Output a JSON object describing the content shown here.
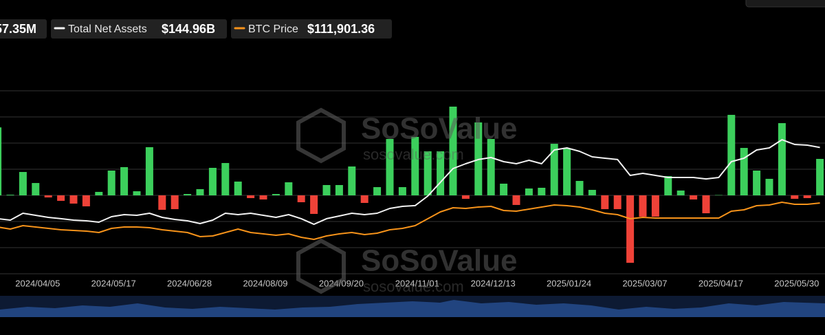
{
  "chart_data": {
    "type": "combo",
    "categories": [
      null,
      null,
      null,
      "2024/04/05",
      null,
      null,
      null,
      null,
      null,
      "2024/05/17",
      null,
      null,
      null,
      null,
      null,
      "2024/06/28",
      null,
      null,
      null,
      null,
      null,
      "2024/08/09",
      null,
      null,
      null,
      null,
      null,
      "2024/09/20",
      null,
      null,
      null,
      null,
      null,
      "2024/11/01",
      null,
      null,
      null,
      null,
      null,
      "2024/12/13",
      null,
      null,
      null,
      null,
      null,
      "2025/01/24",
      null,
      null,
      null,
      null,
      null,
      "2025/03/07",
      null,
      null,
      null,
      null,
      null,
      "2025/04/17",
      null,
      null,
      null,
      null,
      null,
      "2025/05/30",
      null,
      null
    ],
    "ylim": [
      -1200,
      2000
    ],
    "yticks": [
      -1200,
      -800,
      -400,
      0,
      400,
      800,
      1200,
      1600
    ],
    "grid": true,
    "y2lim": [
      0,
      240
    ],
    "y3lim": [
      -10000,
      350000
    ],
    "series": [
      {
        "type": "bar",
        "legend_value": "57.35M",
        "color_positive": "#3ccf5c",
        "color_negative": "#ef4238",
        "values": [
          1040,
          10,
          358,
          189,
          -32,
          -84,
          -126,
          -168,
          53,
          379,
          432,
          63,
          737,
          -221,
          -211,
          21,
          95,
          421,
          495,
          211,
          -42,
          -63,
          21,
          200,
          -105,
          -284,
          158,
          158,
          442,
          -116,
          126,
          863,
          126,
          895,
          674,
          674,
          1358,
          -53,
          1116,
          863,
          179,
          -147,
          105,
          116,
          789,
          716,
          221,
          84,
          -211,
          -211,
          -1032,
          -326,
          -326,
          295,
          74,
          -63,
          -274,
          5,
          1232,
          726,
          379,
          253,
          1105,
          -53,
          -42,
          558
        ]
      },
      {
        "type": "line",
        "name": "Total Net Assets",
        "legend_value": "$144.96B",
        "color": "#f2f2f2",
        "axis": "y2",
        "values": [
          63.2,
          61.6,
          69.5,
          67.1,
          64.7,
          63.2,
          61.6,
          60.8,
          59.2,
          65.5,
          67.9,
          67.1,
          69.5,
          64.7,
          62.4,
          60.8,
          57.6,
          61.6,
          69.5,
          67.9,
          69.5,
          67.1,
          64.7,
          67.9,
          63.2,
          56.8,
          63.2,
          66.3,
          69.5,
          67.9,
          69.5,
          75.0,
          77.4,
          78.2,
          89.2,
          105.0,
          120.8,
          126.3,
          131.1,
          133.4,
          128.7,
          126.3,
          130.3,
          126.3,
          142.1,
          144.5,
          140.5,
          134.2,
          132.6,
          131.1,
          112.9,
          115.3,
          112.9,
          110.5,
          110.5,
          110.5,
          108.9,
          110.5,
          128.7,
          132.6,
          142.1,
          144.5,
          153.9,
          148.4,
          147.6,
          144.96
        ]
      },
      {
        "type": "line",
        "name": "BTC Price",
        "legend_value": "$111,901.36",
        "color": "#f7931a",
        "axis": "y3",
        "values": [
          70500,
          67000,
          72900,
          70500,
          68200,
          65800,
          64600,
          63400,
          61100,
          68200,
          70500,
          70500,
          69300,
          65800,
          63400,
          61100,
          53900,
          55100,
          61100,
          67000,
          61100,
          58700,
          56300,
          58700,
          52800,
          49200,
          55100,
          58700,
          61100,
          57500,
          59900,
          65800,
          68200,
          72900,
          84700,
          96600,
          103700,
          102500,
          104900,
          106100,
          98900,
          97800,
          101300,
          104900,
          108400,
          107200,
          104900,
          100100,
          94200,
          91800,
          84700,
          87100,
          85900,
          85900,
          85900,
          85900,
          85900,
          85900,
          97800,
          100100,
          107200,
          108400,
          113200,
          109600,
          109600,
          111901.36
        ]
      }
    ]
  },
  "watermark": {
    "brand": "SoSoValue",
    "url": "sosovalue.com"
  }
}
